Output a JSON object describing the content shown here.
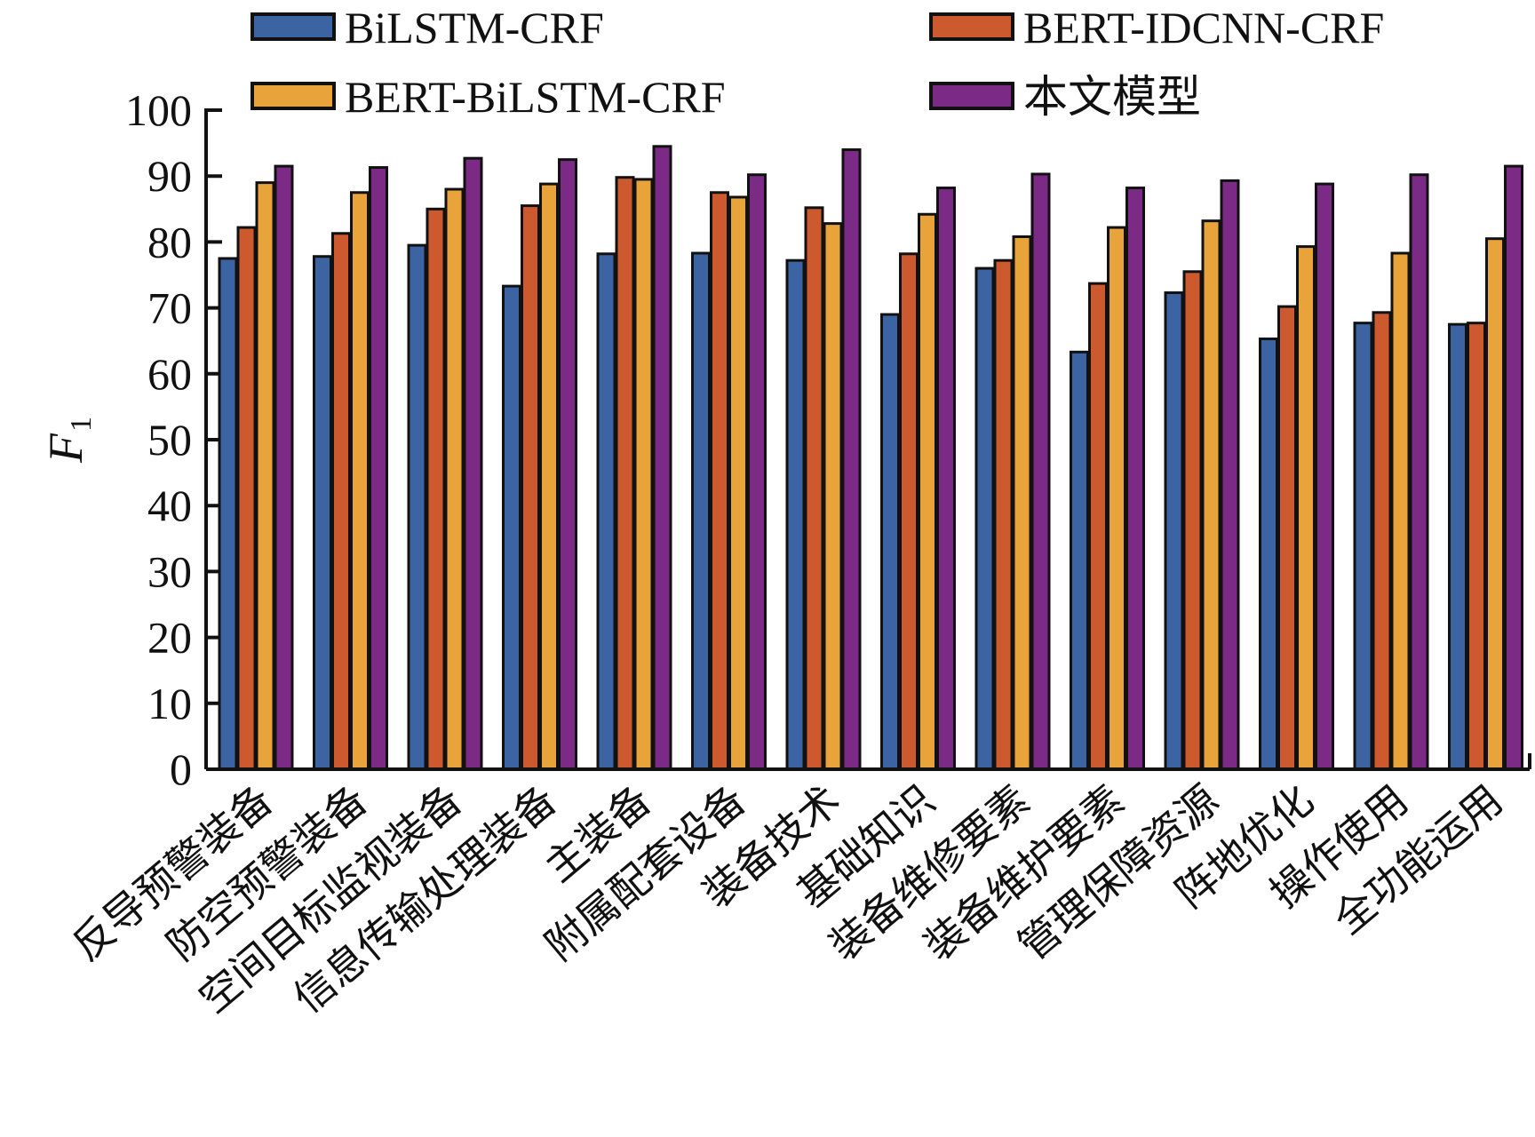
{
  "chart_data": {
    "type": "bar",
    "title": "",
    "xlabel": "",
    "ylabel": "F",
    "ylabel_subscript": "1",
    "ylim": [
      0,
      100
    ],
    "yticks": [
      0,
      10,
      20,
      30,
      40,
      50,
      60,
      70,
      80,
      90,
      100
    ],
    "grid": false,
    "legend_position": "top",
    "categories": [
      "反导预警装备",
      "防空预警装备",
      "空间目标监视装备",
      "信息传输处理装备",
      "主装备",
      "附属配套设备",
      "装备技术",
      "基础知识",
      "装备维修要素",
      "装备维护要素",
      "管理保障资源",
      "阵地优化",
      "操作使用",
      "全功能运用"
    ],
    "series": [
      {
        "name": "BiLSTM-CRF",
        "color": "#3d64a2",
        "values": [
          77.5,
          77.8,
          79.5,
          73.3,
          78.2,
          78.3,
          77.2,
          69.0,
          76.0,
          63.3,
          72.3,
          65.3,
          67.7,
          67.5
        ]
      },
      {
        "name": "BERT-IDCNN-CRF",
        "color": "#cc5a2e",
        "values": [
          82.2,
          81.3,
          85.0,
          85.5,
          89.8,
          87.5,
          85.2,
          78.2,
          77.2,
          73.7,
          75.5,
          70.2,
          69.3,
          67.7
        ]
      },
      {
        "name": "BERT-BiLSTM-CRF",
        "color": "#e9a33b",
        "values": [
          89.0,
          87.5,
          88.0,
          88.8,
          89.5,
          86.8,
          82.8,
          84.2,
          80.8,
          82.2,
          83.2,
          79.3,
          78.3,
          80.5
        ]
      },
      {
        "name": "本文模型",
        "color": "#7b2b85",
        "values": [
          91.5,
          91.3,
          92.7,
          92.5,
          94.5,
          90.2,
          94.0,
          88.2,
          90.3,
          88.2,
          89.3,
          88.8,
          90.2,
          91.5
        ]
      }
    ]
  }
}
